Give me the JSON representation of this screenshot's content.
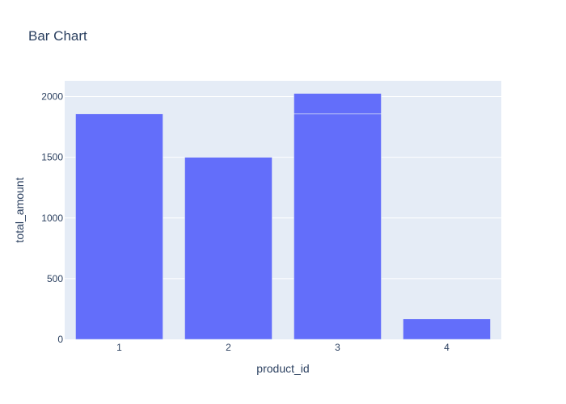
{
  "chart_data": {
    "type": "bar",
    "title": "Bar Chart",
    "xlabel": "product_id",
    "ylabel": "total_amount",
    "categories": [
      "1",
      "2",
      "3",
      "4"
    ],
    "bars": [
      {
        "category": "1",
        "segments": [
          1858
        ]
      },
      {
        "category": "2",
        "segments": [
          1500
        ]
      },
      {
        "category": "3",
        "segments": [
          1858,
          168
        ]
      },
      {
        "category": "4",
        "segments": [
          168
        ]
      }
    ],
    "ylim": [
      0,
      2130
    ],
    "yticks": [
      0,
      500,
      1000,
      1500,
      2000
    ],
    "ytick_labels": [
      "0",
      "500",
      "1000",
      "1500",
      "2000"
    ],
    "grid": true,
    "legend": "none",
    "colors": {
      "bar": "#636efa",
      "plot_bg": "#e5ecf6",
      "grid": "#ffffff",
      "text": "#2a3f5f"
    }
  }
}
